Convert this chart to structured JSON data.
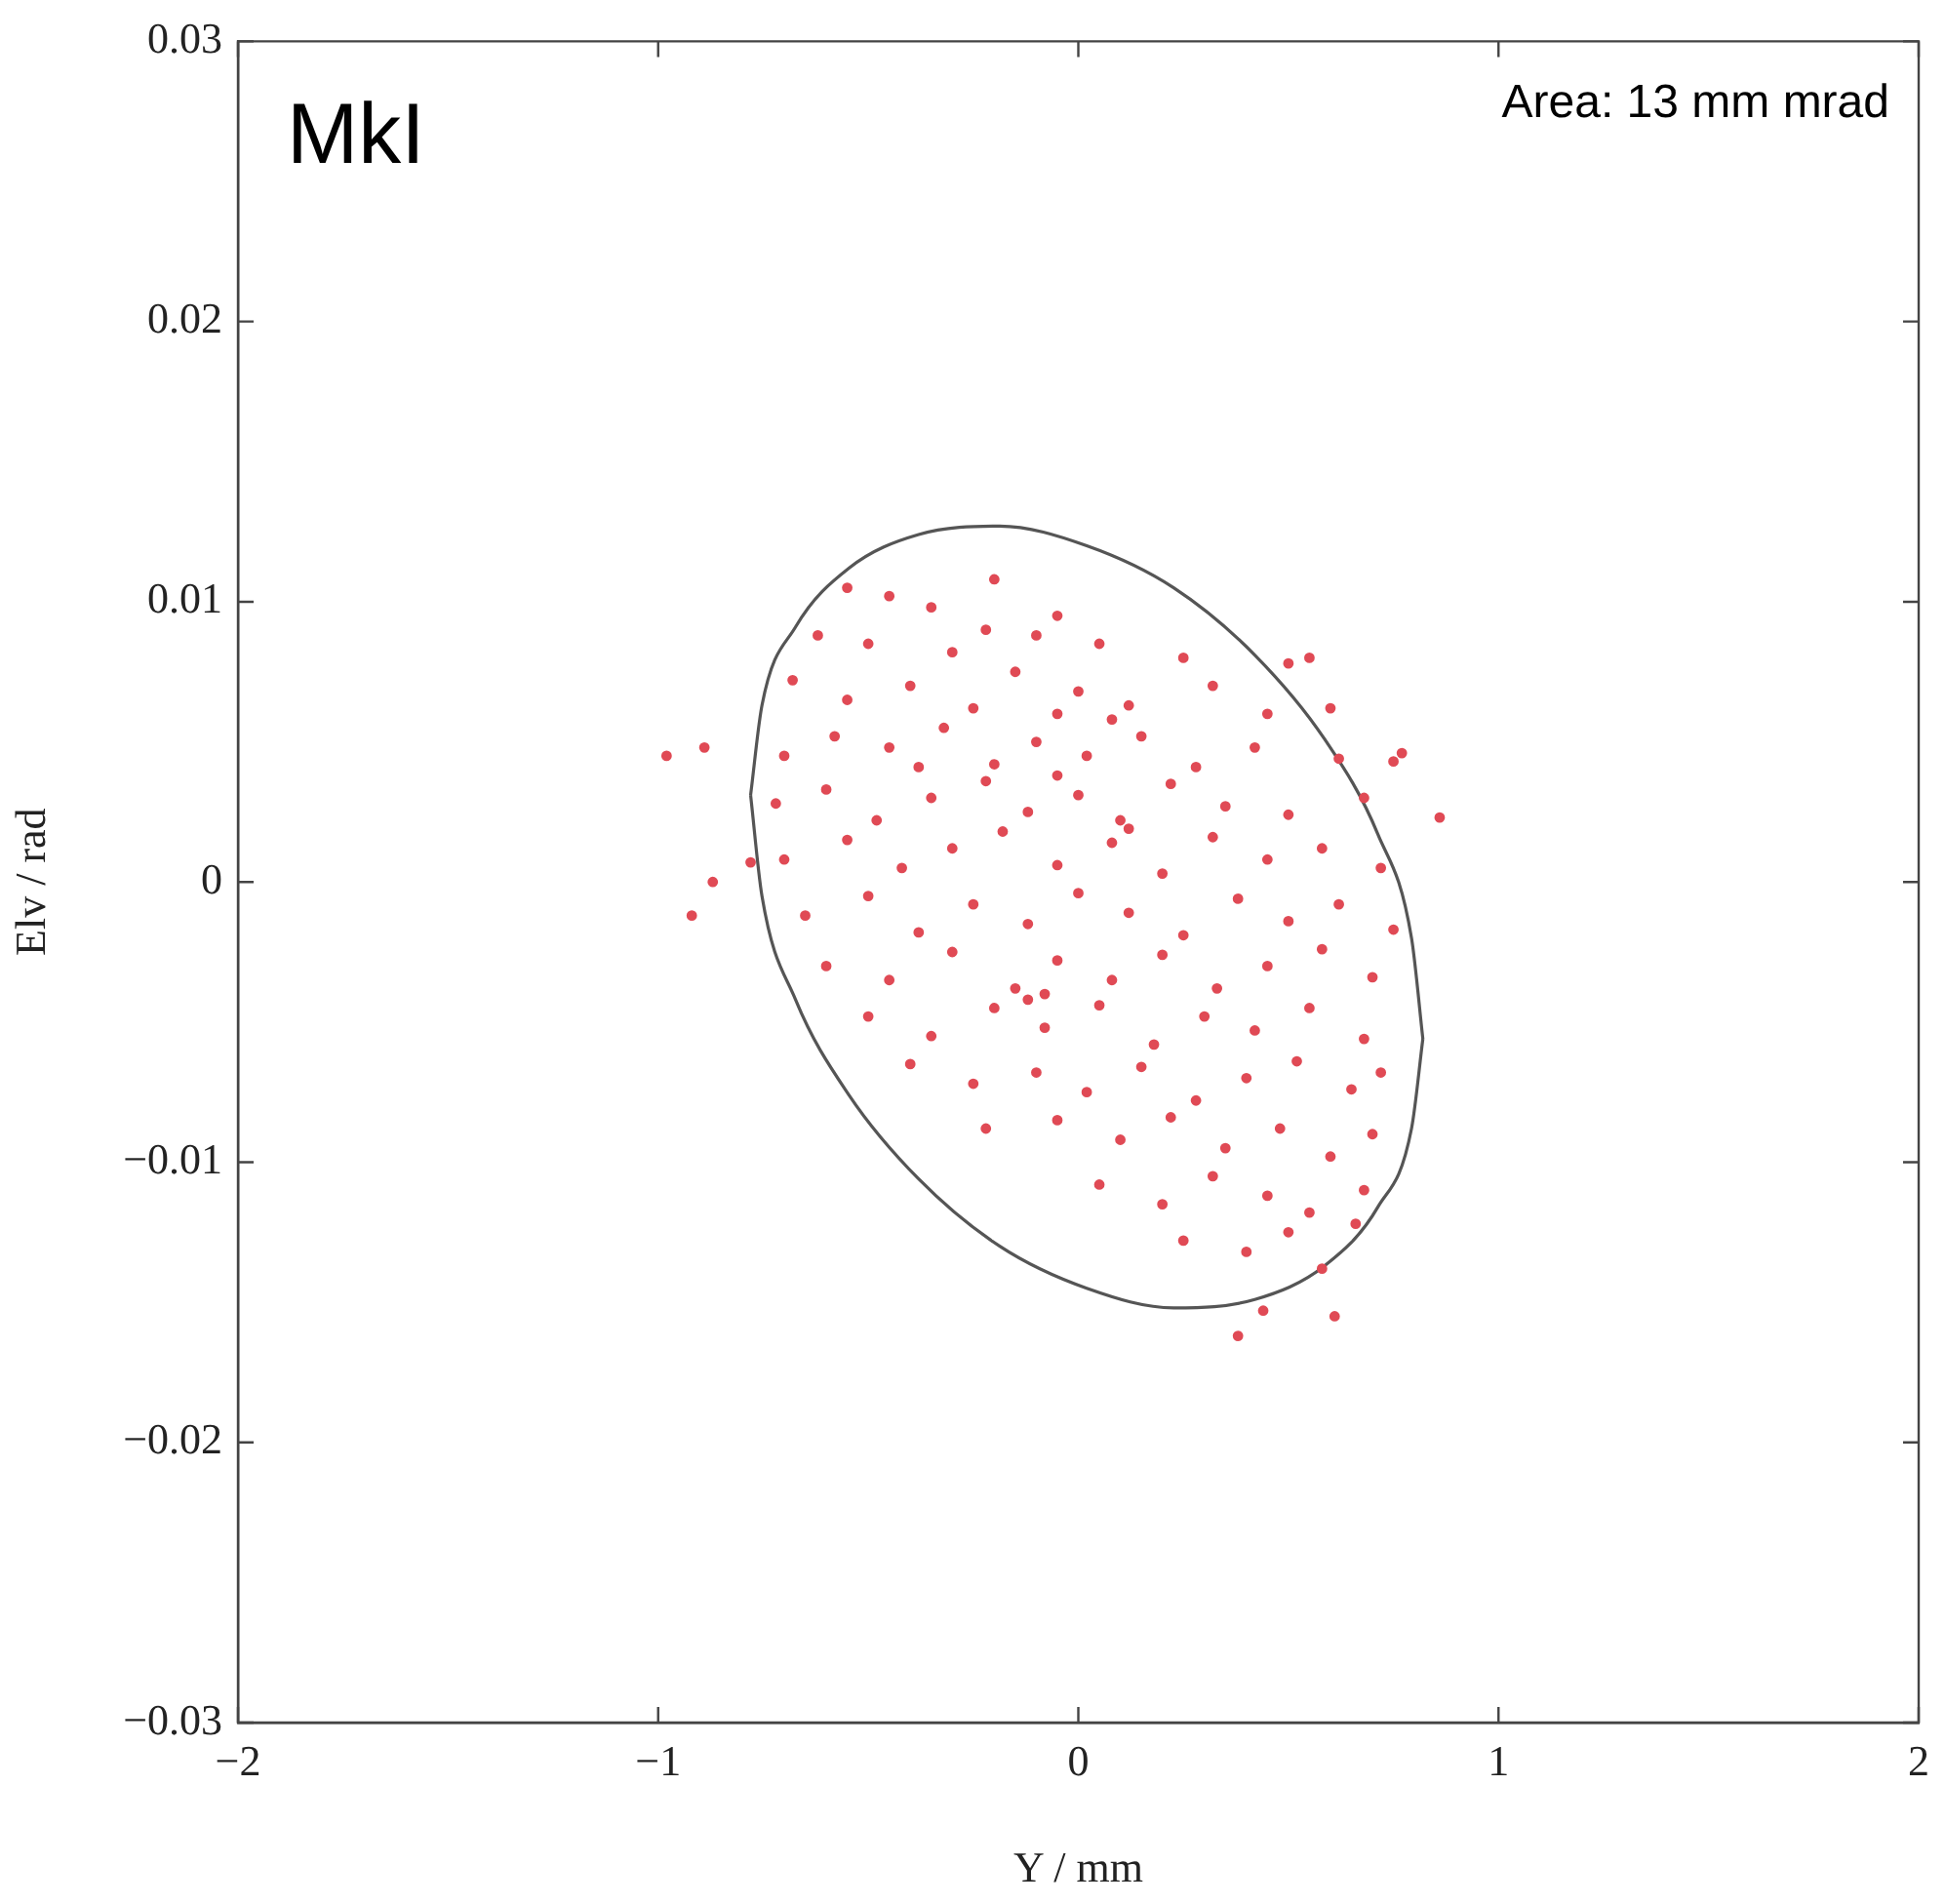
{
  "chart_data": {
    "type": "scatter",
    "xlabel": "Y / mm",
    "ylabel": "Elv / rad",
    "annotations": [
      "MkI",
      "Area: 13 mm mrad"
    ],
    "xlim": [
      -2,
      2
    ],
    "ylim": [
      -0.03,
      0.03
    ],
    "xticks": [
      {
        "value": -2,
        "label": "−2"
      },
      {
        "value": -1,
        "label": "−1"
      },
      0,
      1,
      2
    ],
    "yticks": [
      {
        "value": -0.03,
        "label": "−0.03"
      },
      {
        "value": -0.02,
        "label": "−0.02"
      },
      {
        "value": -0.01,
        "label": "−0.01"
      },
      0,
      0.01,
      0.02,
      0.03
    ],
    "grid": false,
    "legend": false,
    "series": [
      {
        "type": "scatter",
        "marker": "circle",
        "color": "#e04a55",
        "x": [
          -0.98,
          -0.92,
          -0.87,
          -0.89,
          -0.78,
          0.77,
          0.86,
          0.75,
          0.38,
          0.61,
          0.44,
          -0.55,
          -0.45,
          -0.2,
          -0.35,
          -0.05,
          -0.62,
          -0.5,
          -0.3,
          -0.1,
          0.05,
          0.25,
          0.5,
          0.55,
          -0.22,
          -0.68,
          -0.55,
          -0.4,
          -0.25,
          -0.15,
          0.0,
          0.12,
          0.32,
          0.45,
          0.6,
          -0.05,
          -0.7,
          -0.58,
          -0.45,
          -0.32,
          -0.2,
          -0.1,
          0.02,
          0.15,
          0.28,
          0.42,
          0.62,
          -0.38,
          0.08,
          -0.72,
          -0.6,
          -0.48,
          -0.35,
          -0.22,
          -0.12,
          0.0,
          0.1,
          0.22,
          0.35,
          0.5,
          0.68,
          -0.05,
          -0.7,
          -0.55,
          -0.42,
          -0.3,
          -0.18,
          -0.05,
          0.08,
          0.2,
          0.32,
          0.45,
          0.58,
          0.72,
          0.12,
          -0.65,
          -0.5,
          -0.38,
          -0.25,
          -0.12,
          0.0,
          0.12,
          0.25,
          0.38,
          0.5,
          0.62,
          0.75,
          -0.6,
          -0.45,
          -0.3,
          -0.15,
          -0.05,
          0.08,
          0.2,
          0.33,
          0.45,
          0.58,
          0.7,
          -0.08,
          -0.5,
          -0.35,
          -0.2,
          -0.08,
          0.05,
          0.18,
          0.3,
          0.42,
          0.55,
          0.68,
          -0.12,
          -0.4,
          -0.25,
          -0.1,
          0.02,
          0.15,
          0.28,
          0.4,
          0.52,
          0.65,
          0.72,
          -0.22,
          -0.05,
          0.1,
          0.22,
          0.35,
          0.48,
          0.6,
          0.7,
          0.05,
          0.2,
          0.32,
          0.45,
          0.55,
          0.68,
          0.25,
          0.4,
          0.5,
          0.58,
          0.66
        ],
        "values": [
          0.0045,
          -0.0012,
          0.0,
          0.0048,
          0.0007,
          0.0046,
          0.0023,
          0.0043,
          -0.0162,
          -0.0155,
          -0.0153,
          0.0105,
          0.0102,
          0.0108,
          0.0098,
          0.0095,
          0.0088,
          0.0085,
          0.0082,
          0.0088,
          0.0085,
          0.008,
          0.0078,
          0.008,
          0.009,
          0.0072,
          0.0065,
          0.007,
          0.0062,
          0.0075,
          0.0068,
          0.0063,
          0.007,
          0.006,
          0.0062,
          0.006,
          0.0045,
          0.0052,
          0.0048,
          0.0055,
          0.0042,
          0.005,
          0.0045,
          0.0052,
          0.0041,
          0.0048,
          0.0044,
          0.0041,
          0.0058,
          0.0028,
          0.0033,
          0.0022,
          0.003,
          0.0036,
          0.0025,
          0.0031,
          0.0022,
          0.0035,
          0.0027,
          0.0024,
          0.003,
          0.0038,
          0.0008,
          0.0015,
          0.0005,
          0.0012,
          0.0018,
          0.0006,
          0.0014,
          0.0003,
          0.0016,
          0.0008,
          0.0012,
          0.0005,
          0.0019,
          -0.0012,
          -0.0005,
          -0.0018,
          -0.0008,
          -0.0015,
          -0.0004,
          -0.0011,
          -0.0019,
          -0.0006,
          -0.0014,
          -0.0008,
          -0.0017,
          -0.003,
          -0.0035,
          -0.0025,
          -0.0038,
          -0.0028,
          -0.0035,
          -0.0026,
          -0.0038,
          -0.003,
          -0.0024,
          -0.0034,
          -0.004,
          -0.0048,
          -0.0055,
          -0.0045,
          -0.0052,
          -0.0044,
          -0.0058,
          -0.0048,
          -0.0053,
          -0.0045,
          -0.0056,
          -0.0042,
          -0.0065,
          -0.0072,
          -0.0068,
          -0.0075,
          -0.0066,
          -0.0078,
          -0.007,
          -0.0064,
          -0.0074,
          -0.0068,
          -0.0088,
          -0.0085,
          -0.0092,
          -0.0084,
          -0.0095,
          -0.0088,
          -0.0098,
          -0.009,
          -0.0108,
          -0.0115,
          -0.0105,
          -0.0112,
          -0.0118,
          -0.011,
          -0.0128,
          -0.0132,
          -0.0125,
          -0.0138,
          -0.0122
        ]
      },
      {
        "type": "line",
        "marker": "none",
        "line_style": "solid",
        "color": "#555555",
        "x": [
          -0.78,
          -0.753,
          -0.673,
          -0.546,
          -0.38,
          -0.187,
          0.02,
          0.227,
          0.42,
          0.586,
          0.713,
          0.793,
          0.82
        ],
        "values": [
          0.0031,
          0.0063,
          0.0091,
          0.0112,
          0.0124,
          0.0127,
          0.012,
          0.0105,
          0.0081,
          0.0051,
          0.0017,
          -0.002,
          -0.0056
        ]
      },
      {
        "type": "line",
        "marker": "none",
        "line_style": "solid",
        "color": "#555555",
        "x": [
          -0.78,
          -0.753,
          -0.673,
          -0.546,
          -0.38,
          -0.187,
          0.02,
          0.227,
          0.42,
          0.586,
          0.713,
          0.793,
          0.82
        ],
        "values": [
          0.0031,
          -0.0005,
          -0.0042,
          -0.0076,
          -0.0106,
          -0.013,
          -0.0145,
          -0.0152,
          -0.0149,
          -0.0137,
          -0.0116,
          -0.0088,
          -0.0056
        ]
      }
    ]
  }
}
